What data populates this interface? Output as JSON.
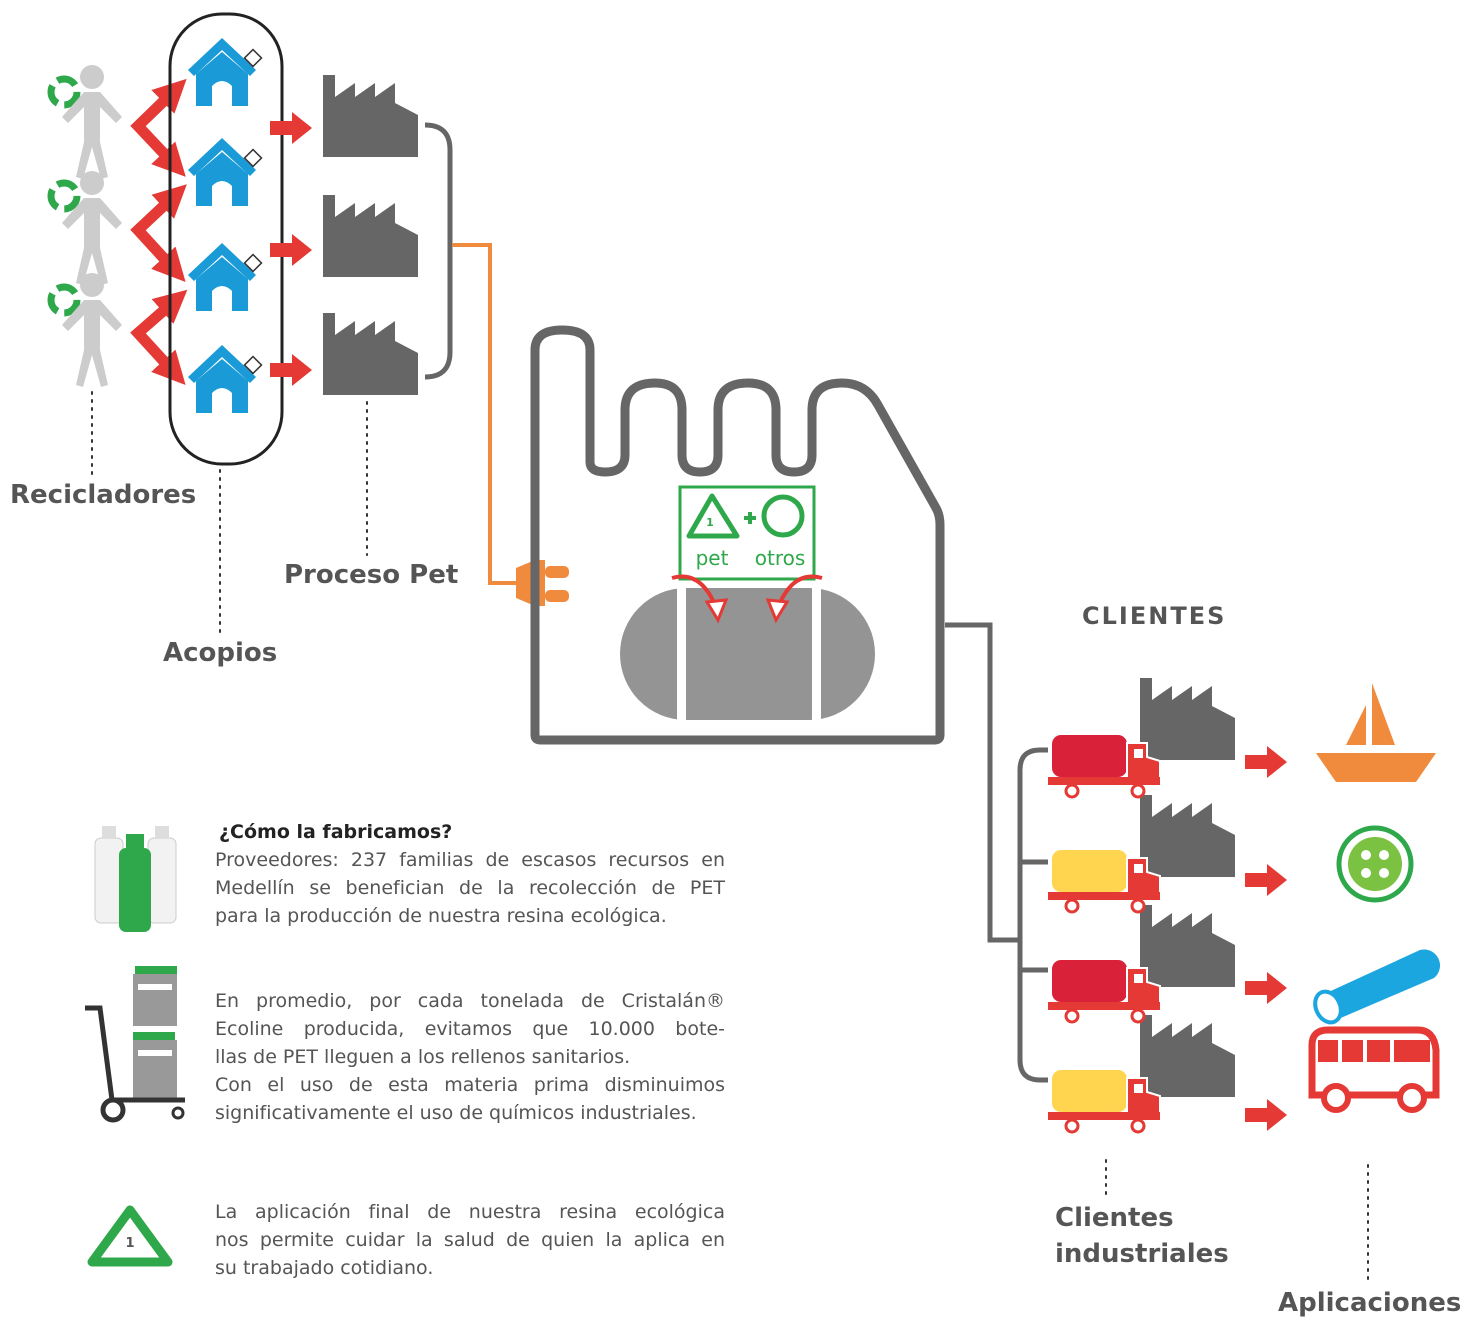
{
  "labels": {
    "recicladores": "Recicladores",
    "acopios": "Acopios",
    "proceso_pet": "Proceso Pet",
    "clientes_title": "CLIENTES",
    "clientes_industriales": [
      "Clientes",
      "industriales"
    ],
    "aplicaciones": "Aplicaciones"
  },
  "factory_sign": {
    "number": "1",
    "pet": "pet",
    "otros": "otros"
  },
  "info": {
    "heading": "¿Cómo la fabricamos?",
    "block1": [
      "Proveedores: 237 familias de escasos recursos en",
      "Medellín se benefician de la recolección de PET",
      "para la producción de nuestra resina ecológica."
    ],
    "block2": [
      "En promedio, por cada tonelada de Cristalán®",
      "Ecoline producida, evitamos que 10.000 bote-",
      "llas de PET lleguen a los rellenos sanitarios.",
      "Con el uso de esta materia prima disminuimos",
      "significativamente el uso de químicos industriales."
    ],
    "block3": [
      "La aplicación final de nuestra resina ecológica",
      "nos permite cuidar la salud de quien la aplica en",
      "su trabajado cotidiano."
    ],
    "icon_number": "1"
  }
}
